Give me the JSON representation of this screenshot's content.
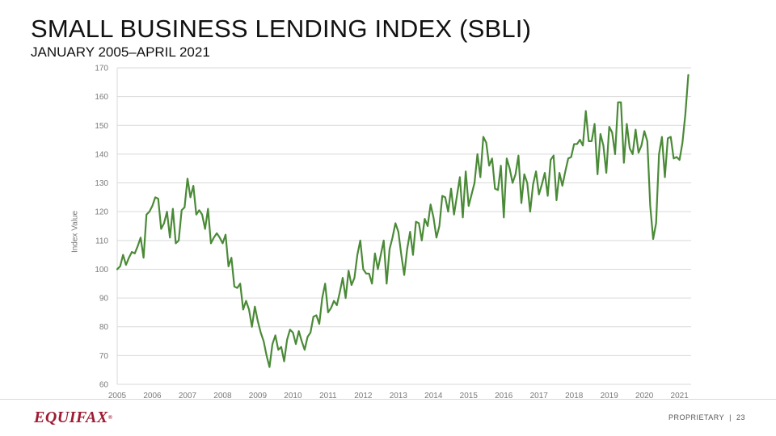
{
  "header": {
    "title": "SMALL BUSINESS LENDING INDEX (SBLI)",
    "subtitle": "JANUARY 2005–APRIL 2021"
  },
  "footer": {
    "logo": "EQUIFAX",
    "logo_mark": "®",
    "proprietary": "PROPRIETARY",
    "separator": "|",
    "page_number": "23"
  },
  "colors": {
    "line": "#4a8a37",
    "grid": "#d9d9d9",
    "logo": "#9e1b32"
  },
  "chart_data": {
    "type": "line",
    "title": "SMALL BUSINESS LENDING INDEX (SBLI)",
    "subtitle": "JANUARY 2005–APRIL 2021",
    "xlabel": "",
    "ylabel": "Index Value",
    "xlim": [
      2005,
      2021.33
    ],
    "ylim": [
      60,
      170
    ],
    "grid": true,
    "x_ticks": [
      "2005",
      "2006",
      "2007",
      "2008",
      "2009",
      "2010",
      "2011",
      "2012",
      "2013",
      "2014",
      "2015",
      "2016",
      "2017",
      "2018",
      "2019",
      "2020",
      "2021"
    ],
    "y_ticks": [
      "60",
      "70",
      "80",
      "90",
      "100",
      "110",
      "120",
      "130",
      "140",
      "150",
      "160",
      "170"
    ],
    "series": [
      {
        "name": "SBLI",
        "start": "2005-01",
        "frequency": "monthly",
        "values": [
          100,
          101,
          105,
          101.5,
          104,
          106,
          105.5,
          108,
          111,
          104,
          119,
          120,
          122,
          125,
          124.5,
          114,
          116,
          120,
          111,
          121,
          109,
          110,
          120.5,
          121.5,
          131.5,
          125,
          129,
          119,
          120.5,
          119,
          114,
          121,
          109,
          111,
          112.5,
          111,
          109,
          112,
          101,
          104,
          94,
          93.5,
          95,
          86,
          89,
          86,
          80,
          87,
          82,
          78,
          75,
          70,
          66,
          74,
          77,
          72,
          73,
          68,
          75.5,
          79,
          78,
          74,
          78.5,
          75,
          72,
          76.5,
          78,
          83.5,
          84,
          81,
          90,
          95,
          85,
          86.5,
          89,
          87.5,
          92,
          97,
          90,
          99.5,
          94.5,
          97,
          105,
          110,
          100,
          98.5,
          98.5,
          95,
          105.5,
          100,
          105,
          110,
          95,
          107,
          111,
          116,
          113,
          105,
          98,
          107,
          113,
          105,
          116.5,
          116,
          110,
          117.5,
          115,
          122.5,
          118,
          111,
          115,
          125.5,
          125,
          120,
          128,
          119,
          125.5,
          132,
          118,
          134,
          122,
          126,
          130,
          140,
          132,
          146,
          144,
          136,
          138.5,
          128,
          127.5,
          136,
          118,
          138.5,
          135,
          130,
          133,
          139.5,
          123,
          133,
          130,
          120,
          129.5,
          134,
          126,
          129.5,
          133.5,
          125.5,
          138,
          139.5,
          124,
          133.5,
          129,
          134,
          138.5,
          139,
          143.5,
          143.5,
          145,
          143,
          155,
          144.5,
          144.5,
          150.5,
          133,
          147,
          143,
          133.5,
          149.5,
          147.5,
          140,
          158,
          158,
          137,
          150.5,
          142,
          140,
          148.5,
          140.5,
          143,
          148,
          144.5,
          122,
          110.5,
          116,
          140,
          146,
          132,
          145.5,
          146,
          138.5,
          139,
          138,
          144,
          154,
          167.5
        ]
      }
    ]
  }
}
